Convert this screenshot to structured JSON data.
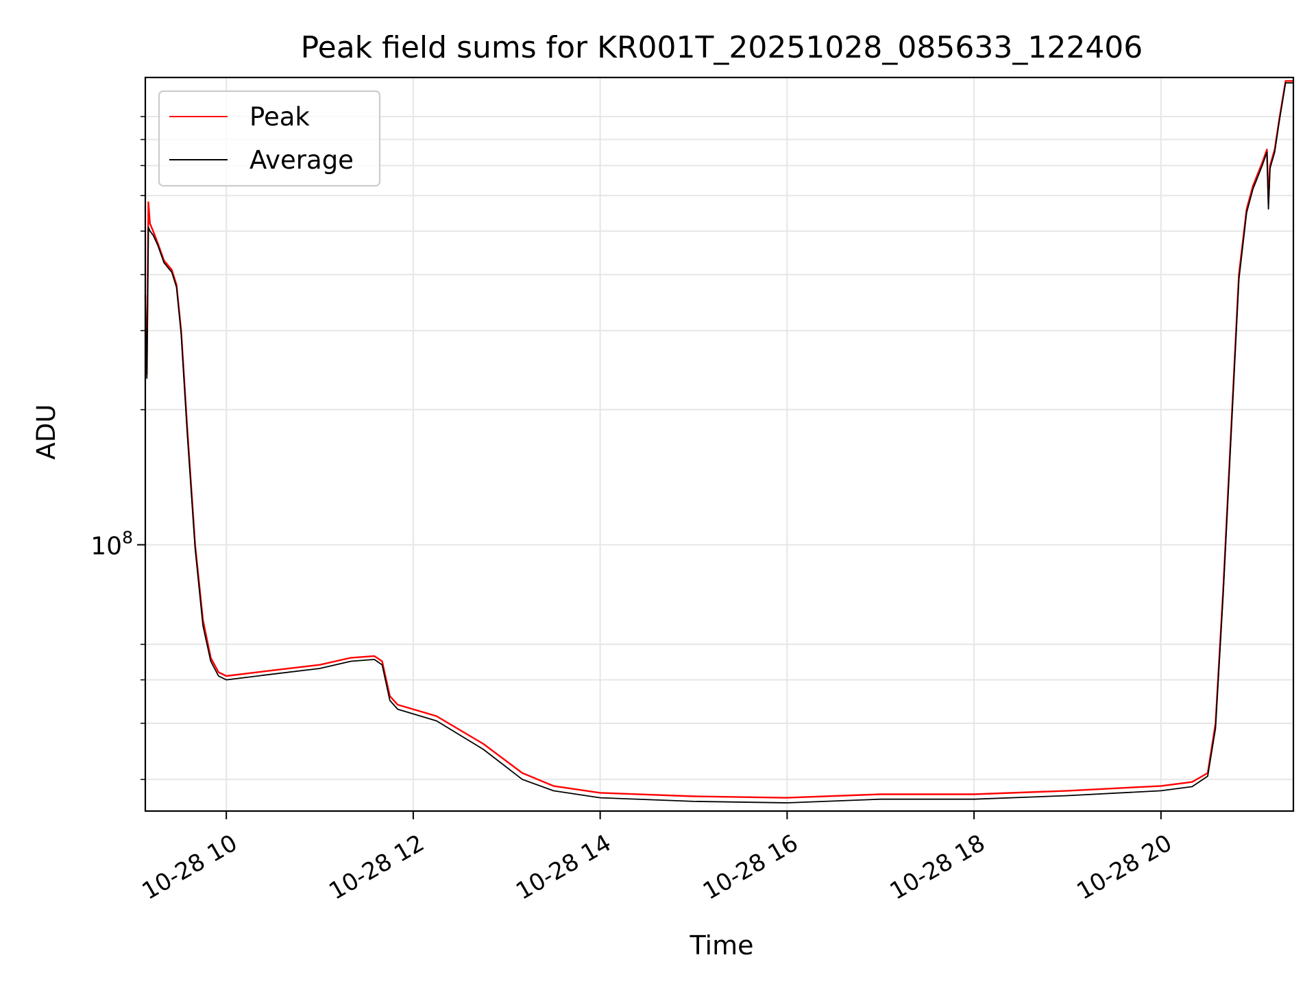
{
  "chart_data": {
    "type": "line",
    "title": "Peak field sums for KR001T_20251028_085633_122406",
    "xlabel": "Time",
    "ylabel": "ADU",
    "yscale": "log",
    "grid": true,
    "legend_position": "top-left",
    "x_type": "datetime",
    "xlim": [
      "2025-10-28 09:08",
      "2025-10-28 21:25"
    ],
    "ylim": [
      25500000,
      1100000000
    ],
    "x_ticks": [
      {
        "value": "2025-10-28 10:00",
        "label": "10-28 10"
      },
      {
        "value": "2025-10-28 12:00",
        "label": "10-28 12"
      },
      {
        "value": "2025-10-28 14:00",
        "label": "10-28 14"
      },
      {
        "value": "2025-10-28 16:00",
        "label": "10-28 16"
      },
      {
        "value": "2025-10-28 18:00",
        "label": "10-28 18"
      },
      {
        "value": "2025-10-28 20:00",
        "label": "10-28 20"
      }
    ],
    "y_major_ticks": [
      {
        "value": 100000000,
        "label_base": "10",
        "label_exponent": "8"
      }
    ],
    "y_minor_ticks": [
      30000000,
      40000000,
      50000000,
      60000000,
      200000000,
      300000000,
      400000000,
      500000000,
      600000000,
      700000000,
      800000000,
      900000000
    ],
    "series": [
      {
        "name": "Peak",
        "color": "#ff0000",
        "x": [
          "2025-10-28 09:08",
          "2025-10-28 09:09",
          "2025-10-28 09:10",
          "2025-10-28 09:11",
          "2025-10-28 09:13",
          "2025-10-28 09:16",
          "2025-10-28 09:20",
          "2025-10-28 09:25",
          "2025-10-28 09:28",
          "2025-10-28 09:31",
          "2025-10-28 09:35",
          "2025-10-28 09:40",
          "2025-10-28 09:45",
          "2025-10-28 09:50",
          "2025-10-28 09:55",
          "2025-10-28 10:00",
          "2025-10-28 10:30",
          "2025-10-28 11:00",
          "2025-10-28 11:20",
          "2025-10-28 11:35",
          "2025-10-28 11:40",
          "2025-10-28 11:45",
          "2025-10-28 11:50",
          "2025-10-28 12:15",
          "2025-10-28 12:45",
          "2025-10-28 13:10",
          "2025-10-28 13:30",
          "2025-10-28 14:00",
          "2025-10-28 15:00",
          "2025-10-28 16:00",
          "2025-10-28 17:00",
          "2025-10-28 18:00",
          "2025-10-28 19:00",
          "2025-10-28 20:00",
          "2025-10-28 20:20",
          "2025-10-28 20:30",
          "2025-10-28 20:35",
          "2025-10-28 20:40",
          "2025-10-28 20:45",
          "2025-10-28 20:50",
          "2025-10-28 20:55",
          "2025-10-28 20:59",
          "2025-10-28 21:05",
          "2025-10-28 21:08",
          "2025-10-28 21:09",
          "2025-10-28 21:10",
          "2025-10-28 21:13",
          "2025-10-28 21:16",
          "2025-10-28 21:20",
          "2025-10-28 21:25"
        ],
        "values": [
          360000000,
          240000000,
          580000000,
          520000000,
          500000000,
          470000000,
          430000000,
          410000000,
          380000000,
          300000000,
          180000000,
          100000000,
          68000000,
          56000000,
          52000000,
          51000000,
          52500000,
          54000000,
          56000000,
          56500000,
          55000000,
          46000000,
          44000000,
          41500000,
          36000000,
          31000000,
          29000000,
          28000000,
          27500000,
          27300000,
          27800000,
          27800000,
          28300000,
          29000000,
          29600000,
          31000000,
          40000000,
          80000000,
          180000000,
          400000000,
          560000000,
          630000000,
          710000000,
          760000000,
          580000000,
          700000000,
          760000000,
          890000000,
          1080000000,
          1080000000
        ]
      },
      {
        "name": "Average",
        "color": "#000000",
        "x": [
          "2025-10-28 09:08",
          "2025-10-28 09:09",
          "2025-10-28 09:10",
          "2025-10-28 09:11",
          "2025-10-28 09:13",
          "2025-10-28 09:16",
          "2025-10-28 09:20",
          "2025-10-28 09:25",
          "2025-10-28 09:28",
          "2025-10-28 09:31",
          "2025-10-28 09:35",
          "2025-10-28 09:40",
          "2025-10-28 09:45",
          "2025-10-28 09:50",
          "2025-10-28 09:55",
          "2025-10-28 10:00",
          "2025-10-28 10:30",
          "2025-10-28 11:00",
          "2025-10-28 11:20",
          "2025-10-28 11:35",
          "2025-10-28 11:40",
          "2025-10-28 11:45",
          "2025-10-28 11:50",
          "2025-10-28 12:15",
          "2025-10-28 12:45",
          "2025-10-28 13:10",
          "2025-10-28 13:30",
          "2025-10-28 14:00",
          "2025-10-28 15:00",
          "2025-10-28 16:00",
          "2025-10-28 17:00",
          "2025-10-28 18:00",
          "2025-10-28 19:00",
          "2025-10-28 20:00",
          "2025-10-28 20:20",
          "2025-10-28 20:30",
          "2025-10-28 20:35",
          "2025-10-28 20:40",
          "2025-10-28 20:45",
          "2025-10-28 20:50",
          "2025-10-28 20:55",
          "2025-10-28 20:59",
          "2025-10-28 21:05",
          "2025-10-28 21:08",
          "2025-10-28 21:09",
          "2025-10-28 21:10",
          "2025-10-28 21:13",
          "2025-10-28 21:16",
          "2025-10-28 21:20",
          "2025-10-28 21:25"
        ],
        "values": [
          350000000,
          235000000,
          510000000,
          500000000,
          490000000,
          465000000,
          425000000,
          405000000,
          375000000,
          295000000,
          175000000,
          98000000,
          66000000,
          55000000,
          51000000,
          50000000,
          51500000,
          53000000,
          55000000,
          55500000,
          54000000,
          45000000,
          43000000,
          40500000,
          35000000,
          30000000,
          28300000,
          27300000,
          26800000,
          26600000,
          27100000,
          27100000,
          27600000,
          28300000,
          28900000,
          30500000,
          39000000,
          78000000,
          175000000,
          390000000,
          550000000,
          620000000,
          700000000,
          750000000,
          560000000,
          690000000,
          750000000,
          880000000,
          1070000000,
          1070000000
        ]
      }
    ]
  }
}
